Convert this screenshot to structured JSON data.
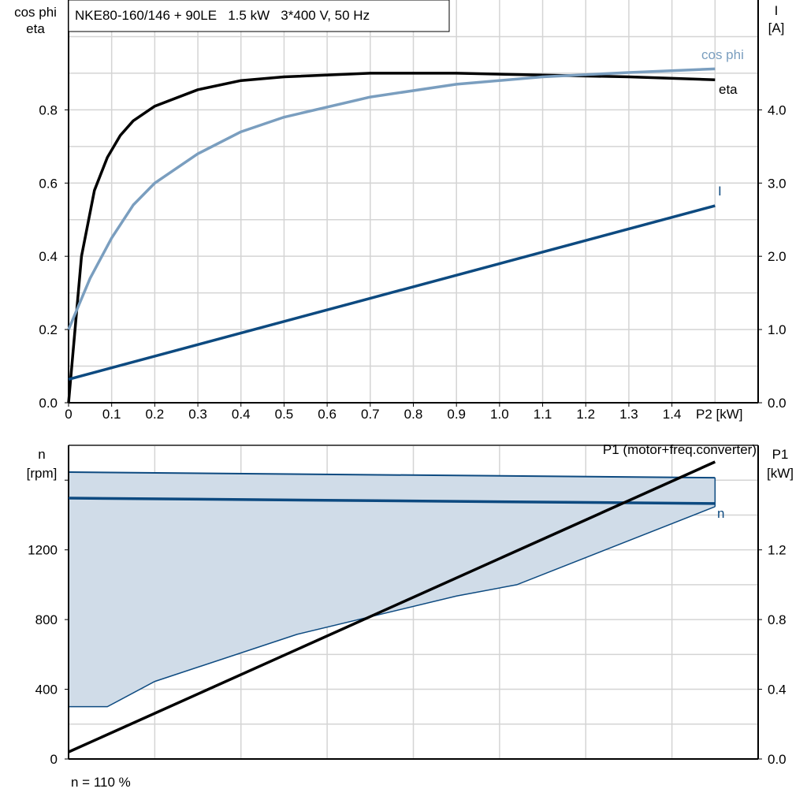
{
  "chart_data": [
    {
      "type": "line",
      "title": "NKE80-160/146 + 90LE   1.5 kW   3*400 V, 50 Hz",
      "xlabel": "P2 [kW]",
      "ylabel": [
        "cos phi",
        "eta"
      ],
      "y2label": [
        "I",
        "[A]"
      ],
      "xlim": [
        0,
        1.6
      ],
      "ylim": [
        0,
        1.1
      ],
      "y2lim": [
        0,
        5.5
      ],
      "grid": true,
      "x_ticks": [
        "0",
        "0.1",
        "0.2",
        "0.3",
        "0.4",
        "0.5",
        "0.6",
        "0.7",
        "0.8",
        "0.9",
        "1.0",
        "1.1",
        "1.2",
        "1.3",
        "1.4"
      ],
      "y_ticks": [
        "0.0",
        "0.2",
        "0.4",
        "0.6",
        "0.8"
      ],
      "y2_ticks": [
        "0.0",
        "1.0",
        "2.0",
        "3.0",
        "4.0"
      ],
      "series": [
        {
          "name": "eta",
          "axis": "left",
          "color": "#000000",
          "x": [
            0,
            0.03,
            0.06,
            0.09,
            0.12,
            0.15,
            0.2,
            0.3,
            0.4,
            0.5,
            0.7,
            0.9,
            1.1,
            1.3,
            1.5
          ],
          "y": [
            0,
            0.4,
            0.58,
            0.67,
            0.73,
            0.77,
            0.81,
            0.855,
            0.88,
            0.89,
            0.9,
            0.9,
            0.895,
            0.89,
            0.882
          ]
        },
        {
          "name": "cos phi",
          "axis": "left",
          "color": "#7a9ebf",
          "x": [
            0,
            0.05,
            0.1,
            0.15,
            0.2,
            0.3,
            0.4,
            0.5,
            0.7,
            0.9,
            1.1,
            1.3,
            1.5
          ],
          "y": [
            0.2,
            0.34,
            0.45,
            0.54,
            0.6,
            0.68,
            0.74,
            0.78,
            0.835,
            0.87,
            0.89,
            0.902,
            0.912
          ]
        },
        {
          "name": "I",
          "axis": "right",
          "color": "#0d4a80",
          "x": [
            0,
            1.5
          ],
          "y": [
            0.32,
            2.69
          ]
        }
      ]
    },
    {
      "type": "line",
      "xlim": [
        0,
        1.6
      ],
      "ylim": [
        0,
        1800
      ],
      "y2lim": [
        0,
        1.8
      ],
      "ylabel": [
        "n",
        "[rpm]"
      ],
      "y2label": [
        "P1",
        "[kW]"
      ],
      "grid": true,
      "y_ticks": [
        "0",
        "400",
        "800",
        "1200"
      ],
      "y2_ticks": [
        "0.0",
        "0.4",
        "0.8",
        "1.2"
      ],
      "band": {
        "color": "#0d4a80",
        "fill": "#d0dce8",
        "upper": {
          "x": [
            0,
            1.5
          ],
          "y": [
            1646,
            1614
          ]
        },
        "lower": {
          "x": [
            0,
            0.09,
            0.2,
            0.53,
            0.9,
            1.04,
            1.5
          ],
          "y": [
            300,
            300,
            445,
            715,
            935,
            1000,
            1448
          ]
        }
      },
      "series": [
        {
          "name": "n",
          "axis": "left",
          "color": "#0d4a80",
          "x": [
            0,
            1.5
          ],
          "y": [
            1497,
            1466
          ]
        },
        {
          "name": "P1 (motor+freq.converter)",
          "axis": "right",
          "color": "#000000",
          "x": [
            0,
            1.5
          ],
          "y": [
            0.04,
            1.705
          ]
        }
      ],
      "footnote": "n = 110 %"
    }
  ]
}
